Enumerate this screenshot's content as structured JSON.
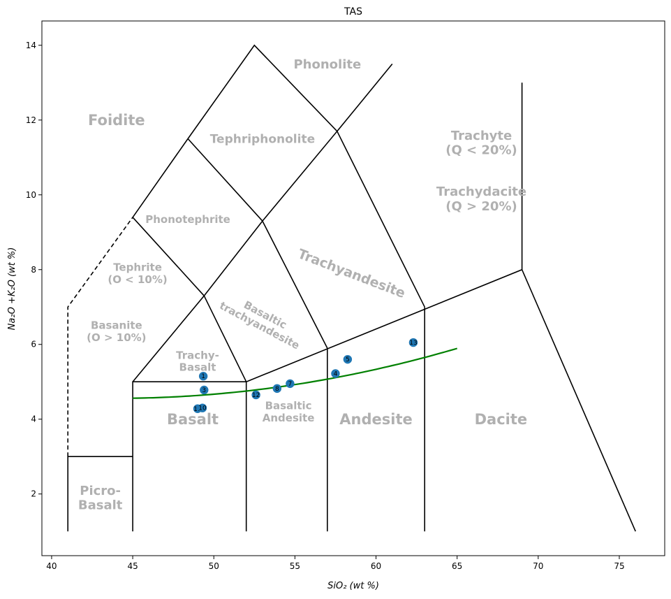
{
  "chart_data": {
    "type": "scatter",
    "title": "TAS",
    "xlabel": "SiO₂ (wt %)",
    "ylabel": "Na₂O +K₂O (wt %)",
    "xlim": [
      39.4,
      77.8
    ],
    "ylim": [
      0.35,
      14.65
    ],
    "xticks": [
      40,
      45,
      50,
      55,
      60,
      65,
      70,
      75
    ],
    "yticks": [
      2,
      4,
      6,
      8,
      10,
      12,
      14
    ],
    "colors": {
      "boundary": "#000000",
      "label": "#b0b0b0",
      "points": "#1f77b4",
      "trend": "#008000"
    },
    "boundaries": [
      {
        "style": "solid",
        "points": [
          [
            41,
            1
          ],
          [
            41,
            3
          ],
          [
            45,
            3
          ]
        ]
      },
      {
        "style": "dashed",
        "points": [
          [
            41,
            3
          ],
          [
            41,
            7
          ],
          [
            45,
            9.4
          ]
        ]
      },
      {
        "style": "solid",
        "points": [
          [
            45,
            1
          ],
          [
            45,
            5
          ],
          [
            52,
            5
          ],
          [
            52,
            1
          ]
        ]
      },
      {
        "style": "solid",
        "points": [
          [
            57,
            1
          ],
          [
            57,
            5.9
          ]
        ]
      },
      {
        "style": "solid",
        "points": [
          [
            63,
            1
          ],
          [
            63,
            7
          ]
        ]
      },
      {
        "style": "solid",
        "points": [
          [
            52,
            5
          ],
          [
            69,
            8
          ],
          [
            69,
            13
          ]
        ]
      },
      {
        "style": "solid",
        "points": [
          [
            69,
            8
          ],
          [
            76,
            1
          ]
        ]
      },
      {
        "style": "solid",
        "points": [
          [
            45,
            5
          ],
          [
            49.4,
            7.3
          ],
          [
            52,
            5
          ]
        ]
      },
      {
        "style": "solid",
        "points": [
          [
            49.4,
            7.3
          ],
          [
            53,
            9.3
          ],
          [
            57,
            5.9
          ]
        ]
      },
      {
        "style": "solid",
        "points": [
          [
            53,
            9.3
          ],
          [
            57.6,
            11.7
          ],
          [
            63,
            7
          ]
        ]
      },
      {
        "style": "solid",
        "points": [
          [
            45,
            9.4
          ],
          [
            48.4,
            11.5
          ],
          [
            52.5,
            14
          ],
          [
            57.6,
            11.7
          ],
          [
            61,
            13.5
          ]
        ]
      },
      {
        "style": "solid",
        "points": [
          [
            45,
            9.4
          ],
          [
            49.4,
            7.3
          ]
        ]
      },
      {
        "style": "solid",
        "points": [
          [
            48.4,
            11.5
          ],
          [
            53,
            9.3
          ]
        ]
      }
    ],
    "regions": [
      {
        "lines": [
          "Phonolite"
        ],
        "x": 57,
        "y": 13.5,
        "size": 18,
        "rotate": 0
      },
      {
        "lines": [
          "Foidite"
        ],
        "x": 44,
        "y": 12,
        "size": 21,
        "rotate": 0
      },
      {
        "lines": [
          "Tephriphonolite"
        ],
        "x": 53,
        "y": 11.5,
        "size": 17,
        "rotate": 0
      },
      {
        "lines": [
          "Trachyte",
          "(Q < 20%)"
        ],
        "x": 66.5,
        "y": 11.4,
        "size": 18,
        "rotate": 0
      },
      {
        "lines": [
          "Trachydacite",
          "(Q > 20%)"
        ],
        "x": 66.5,
        "y": 9.9,
        "size": 18,
        "rotate": 0
      },
      {
        "lines": [
          "Phonotephrite"
        ],
        "x": 48.4,
        "y": 9.35,
        "size": 15,
        "rotate": 0
      },
      {
        "lines": [
          "Trachyandesite"
        ],
        "x": 58.5,
        "y": 7.9,
        "size": 19,
        "rotate": 21
      },
      {
        "lines": [
          "Tephrite",
          "(O < 10%)"
        ],
        "x": 45.3,
        "y": 7.9,
        "size": 15,
        "rotate": 0
      },
      {
        "lines": [
          "Basaltic",
          "trachyandesite"
        ],
        "x": 53,
        "y": 6.65,
        "size": 15,
        "rotate": 28
      },
      {
        "lines": [
          "Basanite",
          "(O > 10%)"
        ],
        "x": 44,
        "y": 6.35,
        "size": 15,
        "rotate": 0
      },
      {
        "lines": [
          "Trachy-",
          "Basalt"
        ],
        "x": 49,
        "y": 5.55,
        "size": 15,
        "rotate": 0
      },
      {
        "lines": [
          "Basalt"
        ],
        "x": 48.7,
        "y": 4,
        "size": 21,
        "rotate": 0
      },
      {
        "lines": [
          "Basaltic",
          "Andesite"
        ],
        "x": 54.6,
        "y": 4.2,
        "size": 15,
        "rotate": 0
      },
      {
        "lines": [
          "Andesite"
        ],
        "x": 60,
        "y": 4,
        "size": 21,
        "rotate": 0
      },
      {
        "lines": [
          "Dacite"
        ],
        "x": 67.7,
        "y": 4,
        "size": 21,
        "rotate": 0
      },
      {
        "lines": [
          "Picro-",
          "Basalt"
        ],
        "x": 43,
        "y": 1.9,
        "size": 18,
        "rotate": 0
      }
    ],
    "points": [
      {
        "label": "1",
        "x": 49.35,
        "y": 5.15
      },
      {
        "label": "3",
        "x": 49.4,
        "y": 4.78
      },
      {
        "label": "11",
        "x": 49.0,
        "y": 4.28
      },
      {
        "label": "10",
        "x": 49.3,
        "y": 4.3
      },
      {
        "label": "12",
        "x": 52.6,
        "y": 4.65
      },
      {
        "label": "8",
        "x": 53.9,
        "y": 4.82
      },
      {
        "label": "7",
        "x": 54.7,
        "y": 4.95
      },
      {
        "label": "4",
        "x": 57.5,
        "y": 5.22
      },
      {
        "label": "5",
        "x": 58.25,
        "y": 5.6
      },
      {
        "label": "13",
        "x": 62.3,
        "y": 6.05
      }
    ],
    "trend": {
      "x_range": [
        45,
        65
      ],
      "coefficients": [
        0.00301,
        -0.2645,
        10.368
      ]
    }
  }
}
